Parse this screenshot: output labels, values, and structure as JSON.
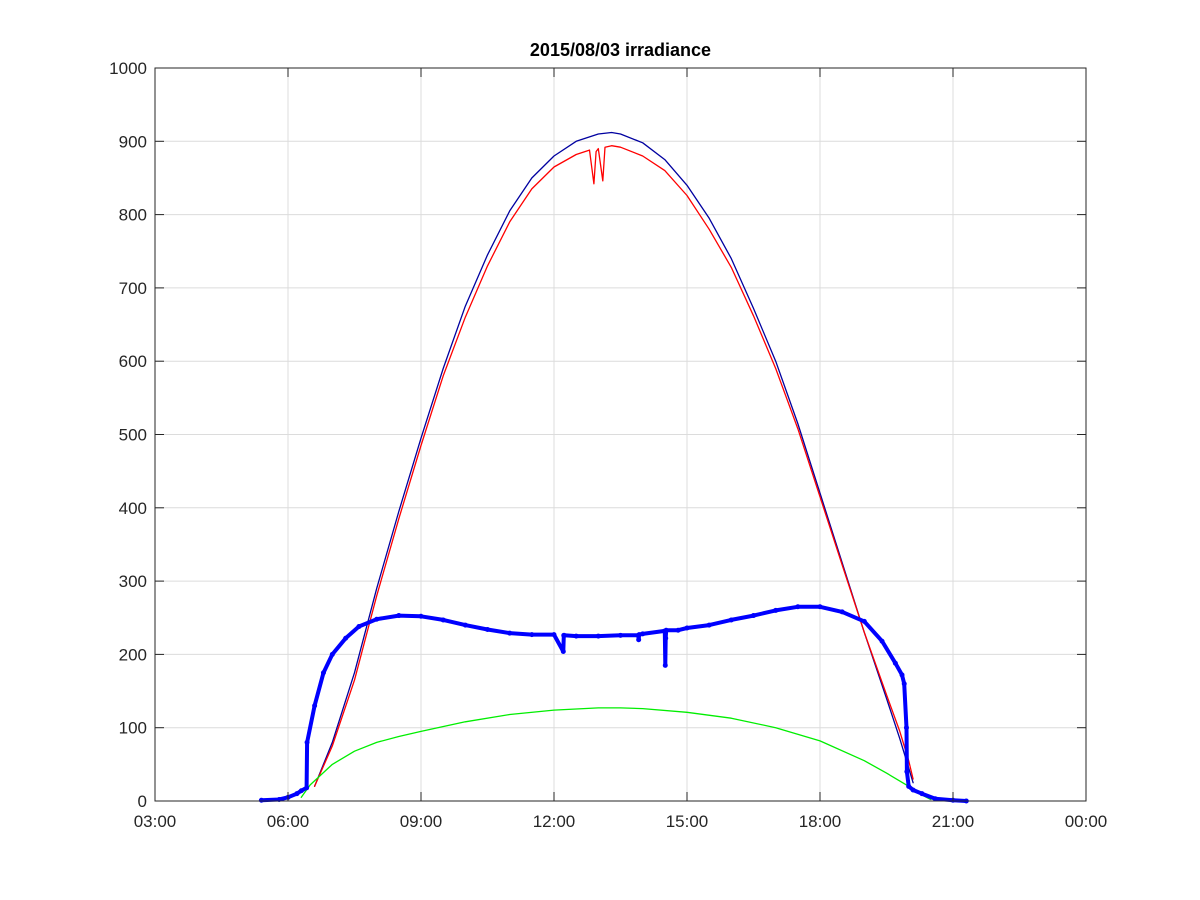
{
  "chart_data": {
    "type": "line",
    "title": "2015/08/03 irradiance",
    "xlabel": "",
    "ylabel": "",
    "x_unit": "hours",
    "xlim": [
      3,
      24
    ],
    "ylim": [
      0,
      1000
    ],
    "grid": true,
    "legend": "none",
    "xticks": [
      3,
      6,
      9,
      12,
      15,
      18,
      21,
      24
    ],
    "xtick_labels": [
      "03:00",
      "06:00",
      "09:00",
      "12:00",
      "15:00",
      "18:00",
      "21:00",
      "00:00"
    ],
    "yticks": [
      0,
      100,
      200,
      300,
      400,
      500,
      600,
      700,
      800,
      900,
      1000
    ],
    "ytick_labels": [
      "0",
      "100",
      "200",
      "300",
      "400",
      "500",
      "600",
      "700",
      "800",
      "900",
      "1000"
    ],
    "series": [
      {
        "color": "#0000a0",
        "style": "thin-line",
        "x": [
          6.6,
          7.0,
          7.5,
          8.0,
          8.5,
          9.0,
          9.5,
          10.0,
          10.5,
          11.0,
          11.5,
          12.0,
          12.5,
          13.0,
          13.3,
          13.5,
          14.0,
          14.5,
          15.0,
          15.5,
          16.0,
          16.5,
          17.0,
          17.5,
          18.0,
          18.5,
          19.0,
          19.5,
          19.8,
          20.0,
          20.1
        ],
        "values": [
          20,
          80,
          175,
          290,
          395,
          495,
          590,
          675,
          745,
          805,
          850,
          880,
          900,
          910,
          912,
          910,
          898,
          875,
          840,
          795,
          740,
          672,
          600,
          515,
          420,
          325,
          230,
          140,
          85,
          45,
          25
        ]
      },
      {
        "color": "#ff0000",
        "style": "thin-line",
        "x": [
          6.6,
          7.0,
          7.5,
          8.0,
          8.5,
          9.0,
          9.5,
          10.0,
          10.5,
          11.0,
          11.5,
          12.0,
          12.5,
          12.8,
          12.9,
          12.95,
          13.0,
          13.1,
          13.15,
          13.3,
          13.5,
          14.0,
          14.5,
          15.0,
          15.5,
          16.0,
          16.5,
          17.0,
          17.5,
          18.0,
          18.5,
          19.0,
          19.5,
          19.8,
          20.0,
          20.1
        ],
        "values": [
          20,
          75,
          165,
          280,
          385,
          485,
          580,
          660,
          730,
          790,
          835,
          865,
          882,
          888,
          842,
          886,
          890,
          846,
          892,
          894,
          892,
          880,
          860,
          826,
          780,
          728,
          662,
          590,
          508,
          415,
          322,
          230,
          145,
          95,
          55,
          30
        ]
      },
      {
        "color": "#00ee00",
        "style": "thin-line",
        "x": [
          6.3,
          6.5,
          7.0,
          7.5,
          8.0,
          8.5,
          9.0,
          10.0,
          11.0,
          12.0,
          13.0,
          13.5,
          14.0,
          15.0,
          16.0,
          17.0,
          18.0,
          19.0,
          19.5,
          20.0,
          20.3,
          20.5
        ],
        "values": [
          5,
          22,
          50,
          68,
          80,
          88,
          95,
          108,
          118,
          124,
          127,
          127,
          126,
          121,
          113,
          100,
          82,
          55,
          38,
          20,
          8,
          2
        ]
      },
      {
        "color": "#0000ff",
        "style": "thick-dots",
        "x": [
          5.4,
          5.8,
          6.0,
          6.2,
          6.3,
          6.42,
          6.43,
          6.6,
          6.8,
          7.0,
          7.3,
          7.6,
          8.0,
          8.5,
          9.0,
          9.5,
          10.0,
          10.5,
          11.0,
          11.5,
          12.0,
          12.21,
          12.22,
          12.23,
          12.5,
          13.0,
          13.5,
          13.9,
          13.91,
          13.92,
          14.0,
          14.5,
          14.51,
          14.52,
          14.53,
          14.8,
          15.0,
          15.5,
          16.0,
          16.5,
          17.0,
          17.5,
          18.0,
          18.5,
          19.0,
          19.4,
          19.7,
          19.85,
          19.9,
          19.95,
          19.96,
          20.0,
          20.1,
          20.3,
          20.6,
          21.0,
          21.3
        ],
        "values": [
          1,
          2,
          5,
          10,
          14,
          18,
          80,
          130,
          175,
          200,
          222,
          238,
          248,
          253,
          252,
          247,
          240,
          234,
          229,
          227,
          227,
          204,
          226,
          226,
          225,
          225,
          226,
          226,
          220,
          227,
          228,
          232,
          185,
          222,
          233,
          233,
          236,
          240,
          247,
          253,
          260,
          265,
          265,
          258,
          245,
          218,
          188,
          172,
          160,
          100,
          40,
          20,
          15,
          10,
          3,
          1,
          0
        ]
      }
    ]
  }
}
